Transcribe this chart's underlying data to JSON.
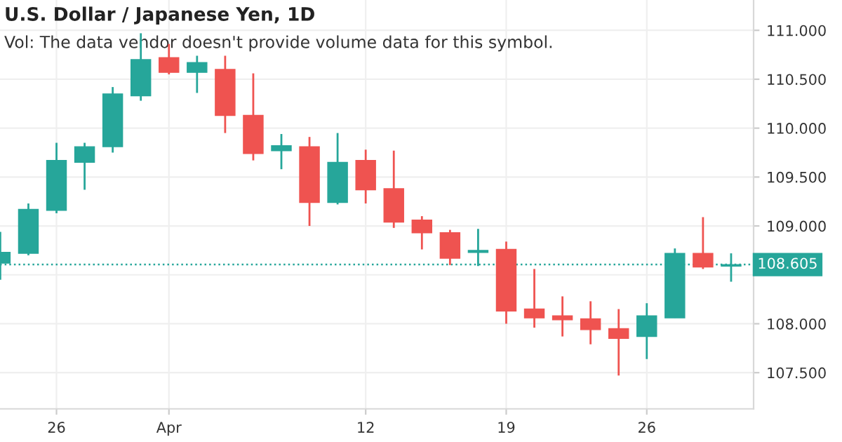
{
  "chart_data": {
    "type": "candlestick",
    "title": "U.S. Dollar / Japanese Yen, 1D",
    "annotations": [
      "Vol: The data vendor doesn't provide volume data for this symbol."
    ],
    "categories": [
      null,
      null,
      "26",
      null,
      null,
      null,
      "Apr",
      null,
      null,
      null,
      null,
      null,
      null,
      "12",
      null,
      null,
      null,
      null,
      "19",
      null,
      null,
      null,
      null,
      "26",
      null,
      null,
      null
    ],
    "ohlc": [
      [
        108.62,
        108.94,
        108.45,
        108.73
      ],
      [
        108.72,
        109.23,
        108.7,
        109.17
      ],
      [
        109.16,
        109.85,
        109.13,
        109.67
      ],
      [
        109.65,
        109.85,
        109.37,
        109.81
      ],
      [
        109.81,
        110.42,
        109.75,
        110.35
      ],
      [
        110.33,
        110.97,
        110.28,
        110.7
      ],
      [
        110.72,
        110.86,
        110.55,
        110.57
      ],
      [
        110.57,
        110.74,
        110.36,
        110.67
      ],
      [
        110.6,
        110.74,
        109.95,
        110.13
      ],
      [
        110.13,
        110.56,
        109.67,
        109.74
      ],
      [
        109.77,
        109.94,
        109.58,
        109.82
      ],
      [
        109.81,
        109.91,
        109.0,
        109.24
      ],
      [
        109.24,
        109.95,
        109.22,
        109.65
      ],
      [
        109.67,
        109.78,
        109.23,
        109.37
      ],
      [
        109.38,
        109.77,
        108.98,
        109.04
      ],
      [
        109.06,
        109.1,
        108.76,
        108.93
      ],
      [
        108.93,
        108.96,
        108.6,
        108.67
      ],
      [
        108.73,
        108.97,
        108.59,
        108.75
      ],
      [
        108.76,
        108.84,
        108.0,
        108.13
      ],
      [
        108.15,
        108.56,
        107.96,
        108.06
      ],
      [
        108.08,
        108.28,
        107.87,
        108.04
      ],
      [
        108.05,
        108.23,
        107.79,
        107.94
      ],
      [
        107.95,
        108.15,
        107.47,
        107.85
      ],
      [
        107.87,
        108.21,
        107.64,
        108.08
      ],
      [
        108.06,
        108.77,
        108.06,
        108.72
      ],
      [
        108.72,
        109.09,
        108.56,
        108.58
      ],
      [
        108.59,
        108.72,
        108.43,
        108.605
      ]
    ],
    "colors": [
      "#26a69a",
      "#26a69a",
      "#26a69a",
      "#26a69a",
      "#26a69a",
      "#26a69a",
      "#ef5350",
      "#26a69a",
      "#ef5350",
      "#ef5350",
      "#26a69a",
      "#ef5350",
      "#26a69a",
      "#ef5350",
      "#ef5350",
      "#ef5350",
      "#ef5350",
      "#26a69a",
      "#ef5350",
      "#ef5350",
      "#ef5350",
      "#ef5350",
      "#ef5350",
      "#26a69a",
      "#26a69a",
      "#ef5350",
      "#26a69a"
    ],
    "ylim": [
      107.13,
      111.31
    ],
    "yticks": [
      {
        "value": 107.5,
        "label": "107.500"
      },
      {
        "value": 108,
        "label": "108.000"
      },
      {
        "value": 108.5,
        "label": null
      },
      {
        "value": 109,
        "label": "109.000"
      },
      {
        "value": 109.5,
        "label": "109.500"
      },
      {
        "value": 110,
        "label": "110.000"
      },
      {
        "value": 110.5,
        "label": "110.500"
      },
      {
        "value": 111,
        "label": "111.000"
      }
    ],
    "ref_lines": [
      {
        "axis": "y",
        "value": 108.605,
        "label": "108.605",
        "color": "#26a69a",
        "line_style": "dotted"
      }
    ],
    "grid": true
  }
}
